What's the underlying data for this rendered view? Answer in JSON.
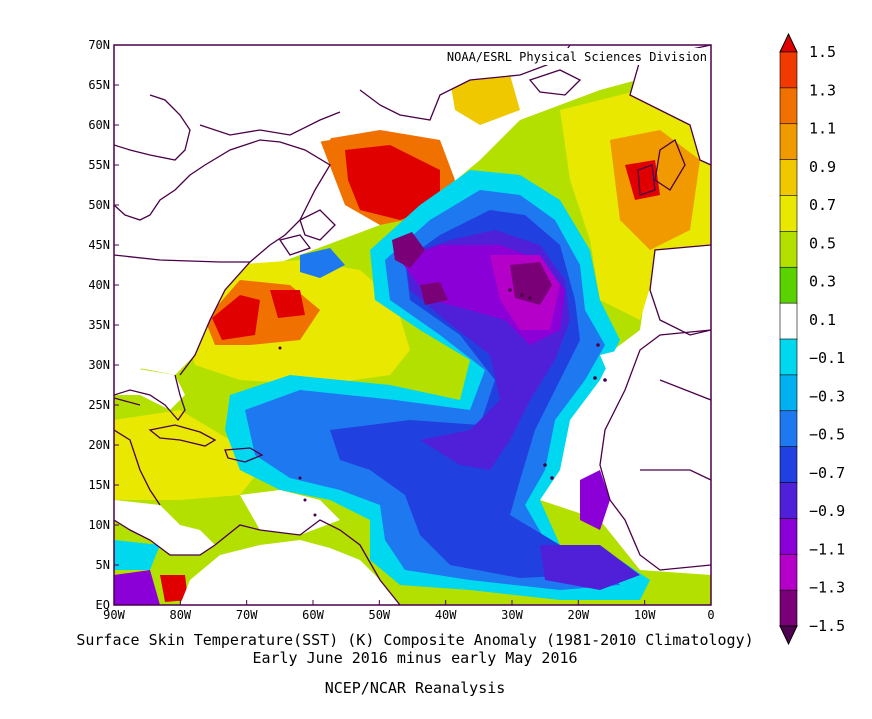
{
  "map": {
    "credit": "NOAA/ESRL Physical Sciences Division",
    "lat_ticks": [
      "70N",
      "65N",
      "60N",
      "55N",
      "50N",
      "45N",
      "40N",
      "35N",
      "30N",
      "25N",
      "20N",
      "15N",
      "10N",
      "5N",
      "EQ"
    ],
    "lon_ticks": [
      "90W",
      "80W",
      "70W",
      "60W",
      "50W",
      "40W",
      "30W",
      "20W",
      "10W",
      "0"
    ],
    "extent": {
      "lon_min": -90,
      "lon_max": 0,
      "lat_min": 0,
      "lat_max": 70
    },
    "colorbar": {
      "labels": [
        "1.5",
        "1.3",
        "1.1",
        "0.9",
        "0.7",
        "0.5",
        "0.3",
        "0.1",
        "−0.1",
        "−0.3",
        "−0.5",
        "−0.7",
        "−0.9",
        "−1.1",
        "−1.3",
        "−1.5"
      ],
      "colors": [
        "#e00000",
        "#f03a00",
        "#f07000",
        "#f09a00",
        "#f0c800",
        "#e8e800",
        "#b4e000",
        "#5ad200",
        "#ffffff",
        "#00d8f0",
        "#00b0f0",
        "#1e78f0",
        "#2040e0",
        "#5020d8",
        "#8c00d8",
        "#b400c8",
        "#7a0078",
        "#500050"
      ]
    }
  },
  "caption": {
    "line1": "Surface Skin Temperature(SST) (K) Composite Anomaly (1981-2010 Climatology)",
    "line2": "Early June 2016 minus early May 2016",
    "line3": "NCEP/NCAR Reanalysis"
  }
}
